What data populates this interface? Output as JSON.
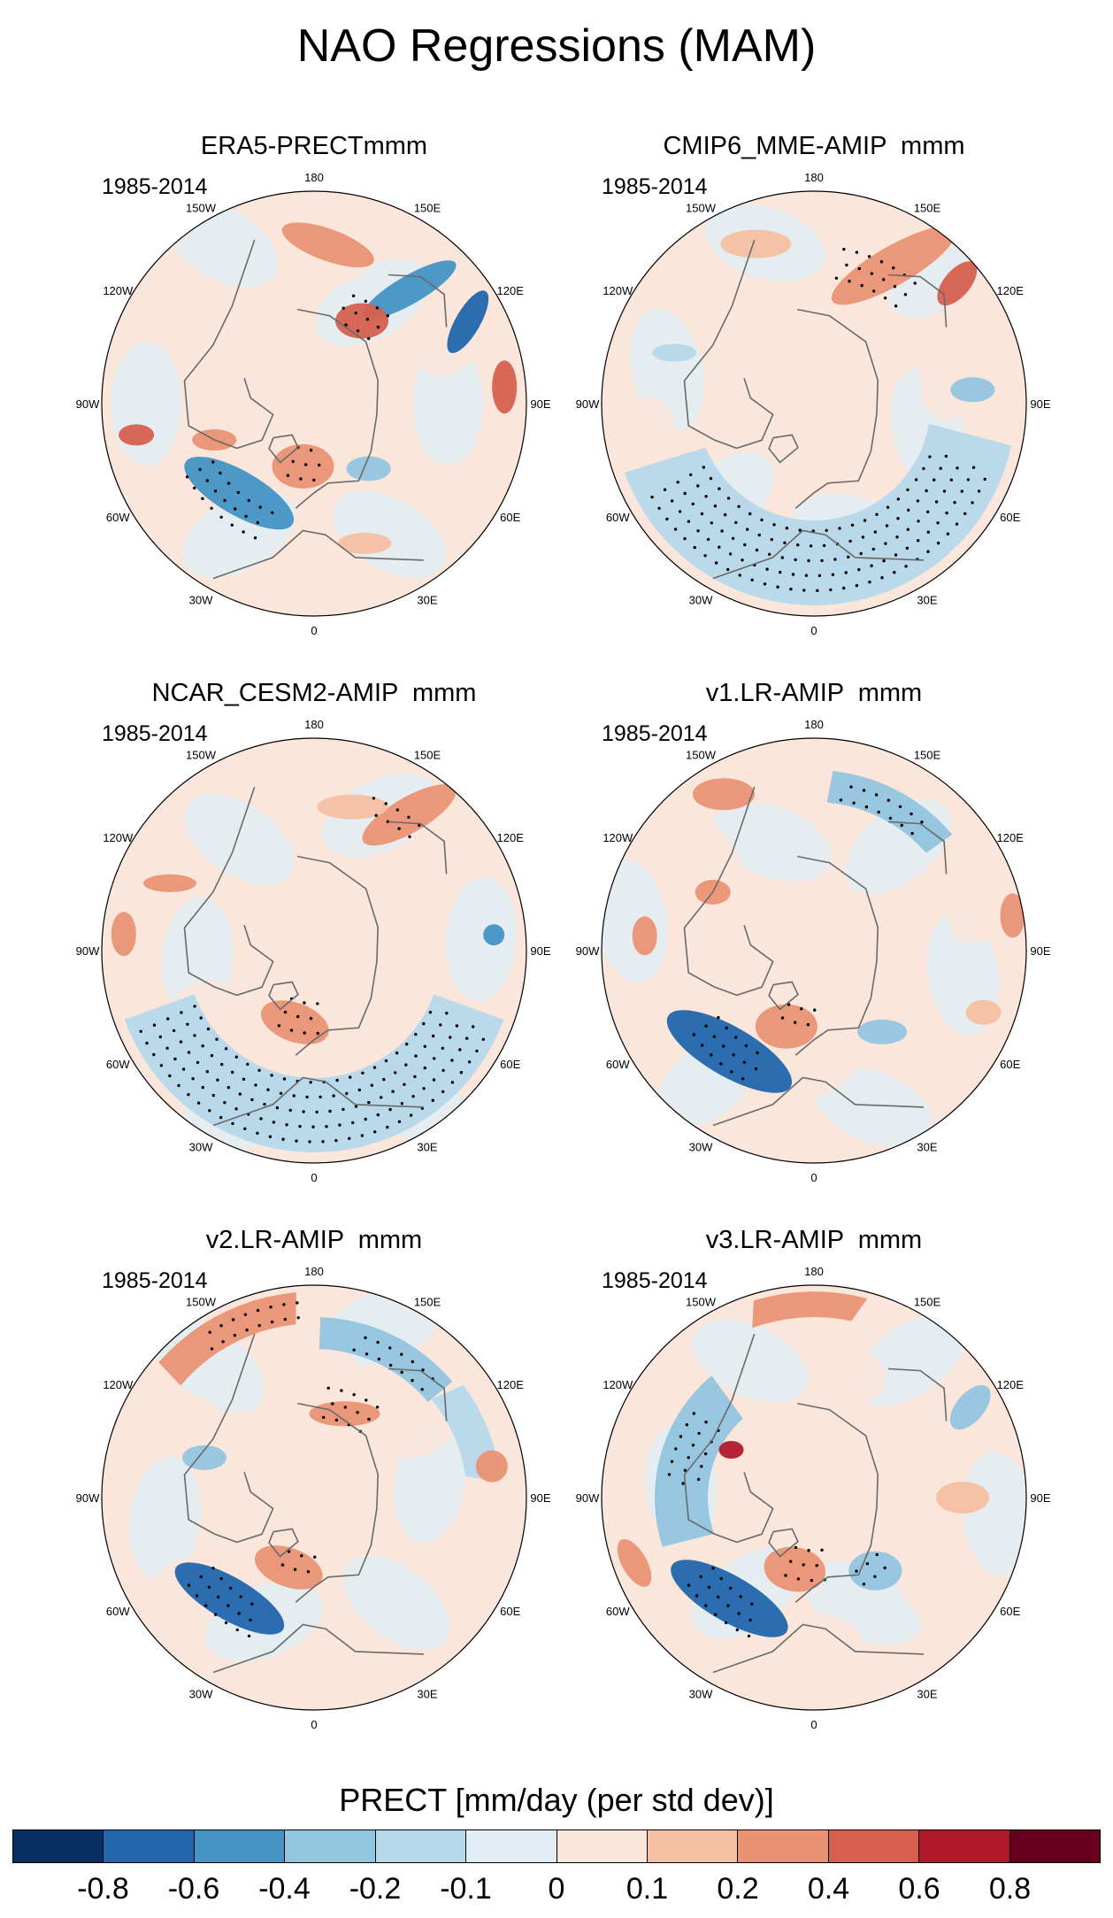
{
  "figure": {
    "title": "NAO Regressions (MAM)"
  },
  "panels": [
    {
      "title": "ERA5-PRECTmmm",
      "period": "1985-2014"
    },
    {
      "title": "CMIP6_MME-AMIP  mmm",
      "period": "1985-2014"
    },
    {
      "title": "NCAR_CESM2-AMIP  mmm",
      "period": "1985-2014"
    },
    {
      "title": "v1.LR-AMIP  mmm",
      "period": "1985-2014"
    },
    {
      "title": "v2.LR-AMIP  mmm",
      "period": "1985-2014"
    },
    {
      "title": "v3.LR-AMIP  mmm",
      "period": "1985-2014"
    }
  ],
  "lon_labels": [
    "180",
    "150E",
    "120E",
    "90E",
    "60E",
    "30E",
    "0",
    "30W",
    "60W",
    "90W",
    "120W",
    "150W"
  ],
  "colorbar": {
    "title": "PRECT [mm/day (per std dev)]",
    "tick_labels": [
      "-0.8",
      "-0.6",
      "-0.4",
      "-0.2",
      "-0.1",
      "0",
      "0.1",
      "0.2",
      "0.4",
      "0.6",
      "0.8"
    ],
    "colors": [
      "#053061",
      "#2166ac",
      "#4393c3",
      "#92c5de",
      "#b6d8ea",
      "#e3edf3",
      "#fbe6dc",
      "#f6c0a2",
      "#ea9274",
      "#d6604d",
      "#b2182b",
      "#67001f"
    ]
  },
  "colors": {
    "land_outline": "#6a6a6a",
    "stipple": "#000000",
    "map_border": "#000000"
  }
}
